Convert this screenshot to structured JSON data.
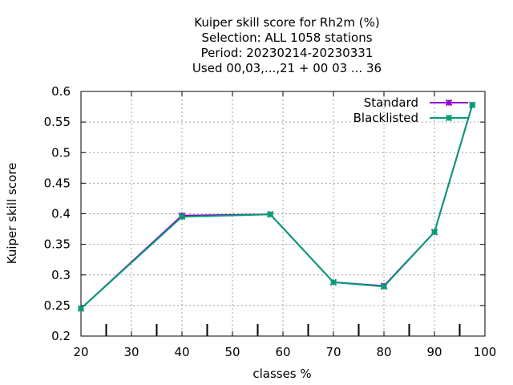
{
  "chart_data": {
    "type": "line",
    "title_lines": [
      "Kuiper skill score  for Rh2m (%)",
      "Selection: ALL   1058 stations",
      "Period: 20230214-20230331",
      "Used  00,03,...,21  + 00 03 ... 36"
    ],
    "xlabel": "classes %",
    "ylabel": "Kuiper skill score",
    "xlim": [
      20,
      100
    ],
    "ylim": [
      0.2,
      0.6
    ],
    "xticks": [
      20,
      30,
      40,
      50,
      60,
      70,
      80,
      90,
      100
    ],
    "yticks": [
      0.2,
      0.25,
      0.3,
      0.35,
      0.4,
      0.45,
      0.5,
      0.55,
      0.6
    ],
    "xtick_labels": [
      "20",
      "30",
      "40",
      "50",
      "60",
      "70",
      "80",
      "90",
      "100"
    ],
    "ytick_labels": [
      "0.2",
      "0.25",
      "0.3",
      "0.35",
      "0.4",
      "0.45",
      "0.5",
      "0.55",
      "0.6"
    ],
    "grid": true,
    "legend_position": "top-right",
    "class_marks": [
      25,
      35,
      45,
      55,
      65,
      75,
      85,
      95
    ],
    "series": [
      {
        "name": "Standard",
        "color": "#9400d3",
        "x": [
          20,
          40,
          57.5,
          70,
          80,
          90,
          97.5
        ],
        "y": [
          0.245,
          0.397,
          0.399,
          0.288,
          0.282,
          0.37,
          0.578
        ]
      },
      {
        "name": "Blacklisted",
        "color": "#009e73",
        "x": [
          20,
          40,
          57.5,
          70,
          80,
          90,
          97.5
        ],
        "y": [
          0.245,
          0.395,
          0.399,
          0.288,
          0.281,
          0.37,
          0.578
        ]
      }
    ]
  }
}
